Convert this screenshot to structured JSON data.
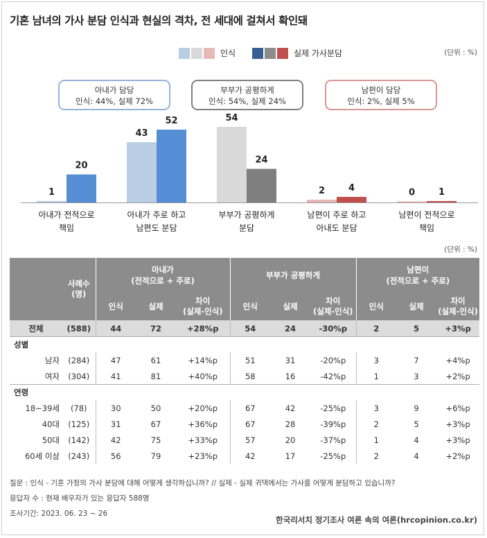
{
  "title": "기혼 남녀의 가사 분담 인식과 현실의 격차, 전 세대에 걸쳐서 확인돼",
  "unit": "(단위 : %)",
  "legend": {
    "perception": "인식",
    "actual": "실제 가사분담"
  },
  "colors": {
    "perception": [
      "#b9cde5",
      "#d9d9d9",
      "#e6b9b8"
    ],
    "actual": [
      "#376092",
      "#8c8c8c",
      "#c0504d"
    ],
    "bar_perception": [
      "#b9cde5",
      "#b9cde5",
      "#d9d9d9",
      "#e6b9b8",
      "#e6b9b8"
    ],
    "bar_actual": [
      "#558ed5",
      "#558ed5",
      "#7f7f7f",
      "#c0504d",
      "#c0504d"
    ]
  },
  "boxes": [
    {
      "title": "아내가 담당",
      "text": "인식: 44%, 실제 72%",
      "border": "#95b3d7"
    },
    {
      "title": "부부가 공평하게",
      "text": "인식: 54%, 실제 24%",
      "border": "#7f7f7f"
    },
    {
      "title": "남편이 담당",
      "text": "인식: 2%, 실제 5%",
      "border": "#d99694"
    }
  ],
  "chart_data": {
    "type": "bar",
    "categories": [
      [
        "아내가 전적으로",
        "책임"
      ],
      [
        "아내가 주로 하고",
        "남편도 분담"
      ],
      [
        "부부가 공평하게",
        "분담"
      ],
      [
        "남편이 주로 하고",
        "아내도 분담"
      ],
      [
        "남편이 전적으로",
        "책임"
      ]
    ],
    "series": [
      {
        "name": "인식",
        "values": [
          1,
          43,
          54,
          2,
          0
        ]
      },
      {
        "name": "실제 가사분담",
        "values": [
          20,
          52,
          24,
          4,
          1
        ]
      }
    ],
    "ylim": [
      0,
      60
    ]
  },
  "table": {
    "unit": "(단위 : %)",
    "header": {
      "sample": "사례수\n(명)",
      "group_wife": "아내가\n(전적으로 + 주로)",
      "group_equal": "부부가 공평하게",
      "group_husband": "남편이\n(전적으로 + 주로)",
      "perception": "인식",
      "actual": "실제",
      "diff": "차이\n(실제-인식)"
    },
    "total": {
      "label": "전체",
      "n": "(588)",
      "vals": [
        "44",
        "72",
        "+28%p",
        "54",
        "24",
        "-30%p",
        "2",
        "5",
        "+3%p"
      ]
    },
    "groups": [
      {
        "label": "성별",
        "rows": [
          {
            "label": "남자",
            "n": "(284)",
            "vals": [
              "47",
              "61",
              "+14%p",
              "51",
              "31",
              "-20%p",
              "3",
              "7",
              "+4%p"
            ]
          },
          {
            "label": "여자",
            "n": "(304)",
            "vals": [
              "41",
              "81",
              "+40%p",
              "58",
              "16",
              "-42%p",
              "1",
              "3",
              "+2%p"
            ]
          }
        ]
      },
      {
        "label": "연령",
        "rows": [
          {
            "label": "18~39세",
            "n": "(78)",
            "vals": [
              "30",
              "50",
              "+20%p",
              "67",
              "42",
              "-25%p",
              "3",
              "9",
              "+6%p"
            ]
          },
          {
            "label": "40대",
            "n": "(125)",
            "vals": [
              "31",
              "67",
              "+36%p",
              "67",
              "28",
              "-39%p",
              "2",
              "5",
              "+3%p"
            ]
          },
          {
            "label": "50대",
            "n": "(142)",
            "vals": [
              "42",
              "75",
              "+33%p",
              "57",
              "20",
              "-37%p",
              "1",
              "4",
              "+3%p"
            ]
          },
          {
            "label": "60세 이상",
            "n": "(243)",
            "vals": [
              "56",
              "79",
              "+23%p",
              "42",
              "17",
              "-25%p",
              "2",
              "4",
              "+2%p"
            ]
          }
        ]
      }
    ]
  },
  "footer": {
    "question": "질문 : 인식 - 기혼 가정의 가사 분담에 대해 어떻게 생각하십니까? // 실제 - 실제 귀댁에서는 가사를 어떻게 분담하고 있습니까?",
    "respondents": "응답자 수 : 현재 배우자가 있는 응답자 588명",
    "period": "조사기간: 2023. 06. 23 ~ 26",
    "credit": "한국리서치 정기조사 여론 속의 여론(hrcopinion.co.kr)"
  }
}
